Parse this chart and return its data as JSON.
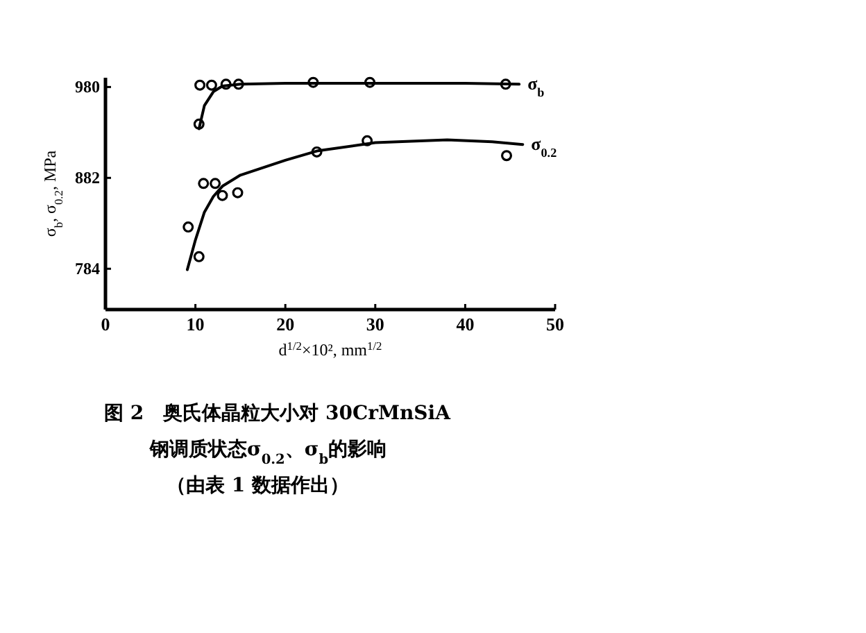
{
  "chart_data": {
    "type": "scatter",
    "xlabel": "d$^{1/2}$×10², mm$^{1/2}$",
    "ylabel": "σ$_{b}$, σ$_{0.2}$, MPa",
    "xlim": [
      0,
      50
    ],
    "xticks": [
      0,
      10,
      20,
      30,
      40,
      50
    ],
    "ylim": [
      740,
      990
    ],
    "yticks": [
      784,
      882,
      980
    ],
    "grid": false,
    "series": [
      {
        "marker": "circle",
        "color": "#000000",
        "x": [
          10.4,
          10.5,
          11.8,
          13.4,
          14.8,
          23.1,
          29.4,
          44.5
        ],
        "values": [
          940,
          982,
          982,
          983,
          983,
          985,
          985,
          983
        ]
      },
      {
        "type": "line",
        "name": "σ$_{b}$",
        "color": "#000000",
        "x": [
          10.4,
          11,
          12,
          13,
          15,
          20,
          30,
          40,
          46
        ],
        "values": [
          935,
          960,
          975,
          981,
          983,
          984,
          984,
          984,
          983
        ]
      },
      {
        "marker": "circle",
        "color": "#000000",
        "x": [
          9.2,
          10.4,
          10.9,
          12.2,
          13.0,
          14.7,
          23.5,
          29.1,
          44.6
        ],
        "values": [
          829,
          797,
          876,
          876,
          863,
          866,
          910,
          922,
          906
        ]
      },
      {
        "type": "line",
        "name": "σ$_{0.2}$",
        "color": "#000000",
        "x": [
          9.1,
          10,
          11,
          12,
          13,
          15,
          20,
          23.5,
          30,
          38,
          43,
          46.4
        ],
        "values": [
          783,
          815,
          845,
          862,
          873,
          885,
          901,
          911,
          920,
          923,
          921,
          918
        ]
      }
    ],
    "annotations": [
      "图 2　奥氏体晶粒大小对 30CrMnSiA",
      "钢调质状态σ$_{0.2}$、σ$_{b}$的影响",
      "（由表 1 数据作出）"
    ]
  }
}
